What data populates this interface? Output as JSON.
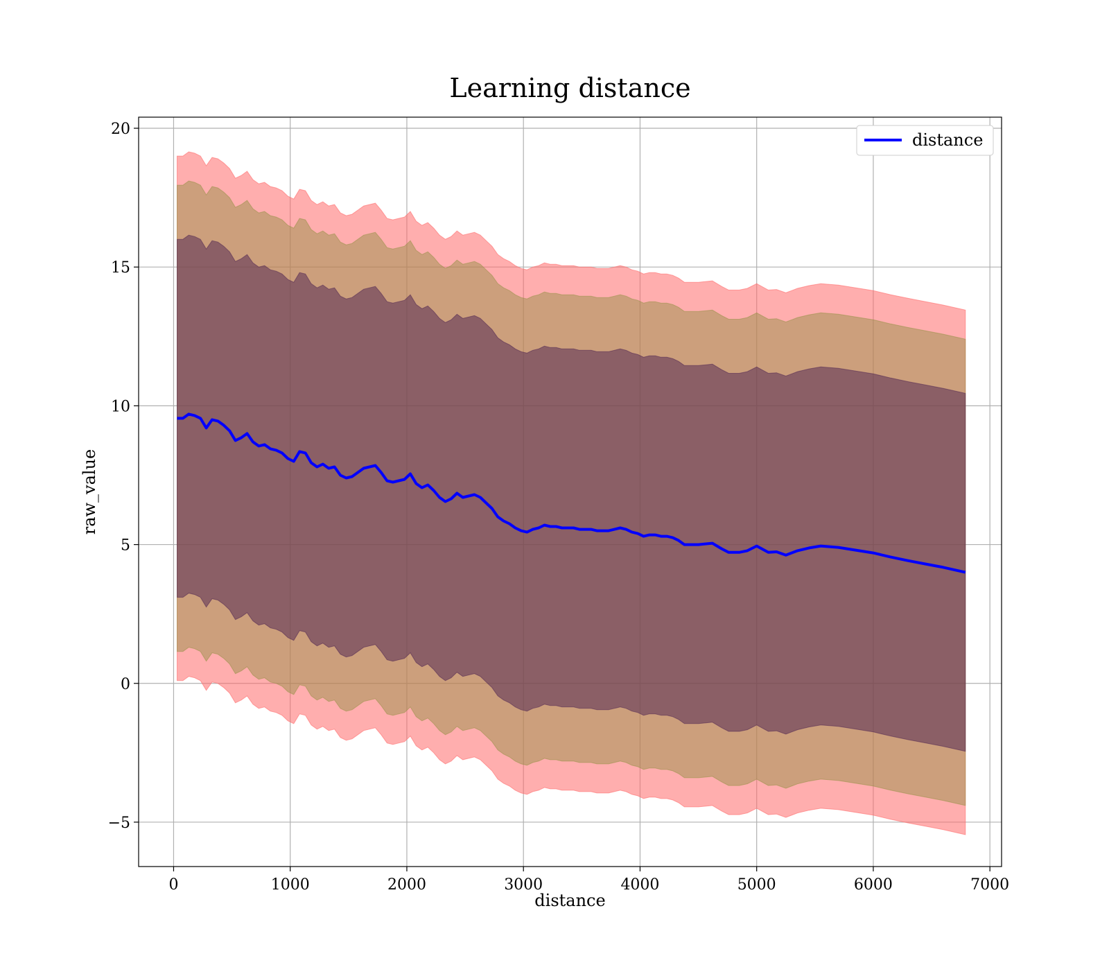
{
  "chart_data": {
    "type": "line",
    "title": "Learning distance",
    "xlabel": "distance",
    "ylabel": "raw_value",
    "xlim": [
      -300,
      7100
    ],
    "ylim": [
      -6.6,
      20.4
    ],
    "xticks": [
      0,
      1000,
      2000,
      3000,
      4000,
      5000,
      6000,
      7000
    ],
    "yticks": [
      -5,
      0,
      5,
      10,
      15,
      20
    ],
    "xtick_labels": [
      "0",
      "1000",
      "2000",
      "3000",
      "4000",
      "5000",
      "6000",
      "7000"
    ],
    "ytick_labels": [
      "−5",
      "0",
      "5",
      "10",
      "15",
      "20"
    ],
    "grid": true,
    "legend": {
      "position": "top-right",
      "entries": [
        "distance"
      ]
    },
    "colors": {
      "line": "#0000ff",
      "band_outer": "#ff6b6b",
      "band_middle": "#8f8f40",
      "band_inner": "#4a2050"
    },
    "series": [
      {
        "name": "distance",
        "x": [
          30,
          80,
          130,
          180,
          230,
          280,
          330,
          380,
          430,
          480,
          530,
          580,
          630,
          680,
          730,
          780,
          830,
          880,
          930,
          980,
          1030,
          1080,
          1130,
          1180,
          1230,
          1280,
          1330,
          1380,
          1430,
          1480,
          1530,
          1580,
          1630,
          1680,
          1730,
          1780,
          1830,
          1880,
          1930,
          1980,
          2030,
          2080,
          2130,
          2180,
          2230,
          2280,
          2330,
          2380,
          2430,
          2480,
          2530,
          2580,
          2630,
          2680,
          2730,
          2780,
          2830,
          2880,
          2930,
          2980,
          3030,
          3080,
          3130,
          3180,
          3230,
          3280,
          3330,
          3380,
          3430,
          3480,
          3530,
          3580,
          3630,
          3680,
          3730,
          3780,
          3830,
          3880,
          3930,
          3980,
          4030,
          4080,
          4130,
          4180,
          4230,
          4280,
          4330,
          4380,
          4430,
          4500,
          4620,
          4700,
          4760,
          4850,
          4920,
          5000,
          5100,
          5170,
          5250,
          5350,
          5450,
          5550,
          5700,
          5850,
          6000,
          6150,
          6300,
          6450,
          6600,
          6790
        ],
        "mean": [
          9.55,
          9.55,
          9.7,
          9.65,
          9.55,
          9.2,
          9.5,
          9.45,
          9.3,
          9.1,
          8.75,
          8.85,
          9.0,
          8.7,
          8.55,
          8.6,
          8.45,
          8.4,
          8.3,
          8.1,
          8.0,
          8.35,
          8.3,
          7.95,
          7.8,
          7.9,
          7.75,
          7.8,
          7.5,
          7.4,
          7.45,
          7.6,
          7.75,
          7.8,
          7.85,
          7.6,
          7.3,
          7.25,
          7.3,
          7.35,
          7.55,
          7.2,
          7.05,
          7.15,
          6.95,
          6.7,
          6.55,
          6.65,
          6.85,
          6.7,
          6.75,
          6.8,
          6.7,
          6.5,
          6.3,
          6.0,
          5.85,
          5.75,
          5.6,
          5.5,
          5.45,
          5.55,
          5.6,
          5.7,
          5.65,
          5.65,
          5.6,
          5.6,
          5.6,
          5.55,
          5.55,
          5.55,
          5.5,
          5.5,
          5.5,
          5.55,
          5.6,
          5.55,
          5.45,
          5.4,
          5.3,
          5.35,
          5.35,
          5.3,
          5.3,
          5.25,
          5.15,
          5.0,
          5.0,
          5.0,
          5.05,
          4.85,
          4.72,
          4.72,
          4.78,
          4.95,
          4.72,
          4.74,
          4.62,
          4.78,
          4.88,
          4.95,
          4.9,
          4.8,
          4.7,
          4.55,
          4.42,
          4.3,
          4.18,
          4.0
        ],
        "inner_halfwidth": 6.45,
        "middle_halfwidth": 8.4,
        "outer_halfwidth": 9.45
      }
    ]
  }
}
